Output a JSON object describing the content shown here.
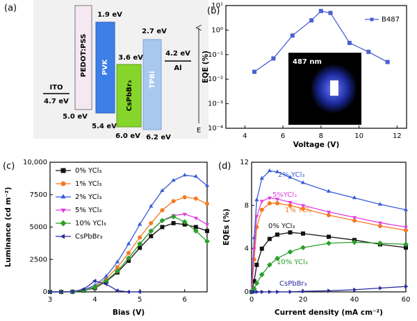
{
  "diagram": {
    "panel": "(a)",
    "axis_label": "E",
    "layers": [
      {
        "name": "ITO",
        "levels": [
          "4.7 eV"
        ]
      },
      {
        "name": "PEDOT:PSS",
        "levels": [
          "5.0 eV"
        ]
      },
      {
        "name": "PVK",
        "levels": [
          "1.9 eV",
          "5.4 eV"
        ]
      },
      {
        "name": "CsPbBr₃",
        "levels": [
          "3.6 eV",
          "6.0 eV"
        ]
      },
      {
        "name": "TPBi",
        "levels": [
          "2.7 eV",
          "6.2 eV"
        ]
      },
      {
        "name": "Al",
        "levels": [
          "4.2 eV"
        ]
      }
    ]
  },
  "chart_data": [
    {
      "type": "line",
      "panel": "(b)",
      "xlabel": "Voltage (V)",
      "ylabel": "EQE (%)",
      "inset_label": "487 nm",
      "log_y": true,
      "legend": "upper right",
      "xlim": [
        3,
        12.5
      ],
      "xticks": [
        4,
        6,
        8,
        10,
        12
      ],
      "ylim": [
        0.0001,
        10
      ],
      "yticks": [
        {
          "value": 0.0001,
          "label": "10⁻⁴"
        },
        {
          "value": 0.001,
          "label": "10⁻³"
        },
        {
          "value": 0.01,
          "label": "10⁻²"
        },
        {
          "value": 0.1,
          "label": "10⁻¹"
        },
        {
          "value": 1,
          "label": "10⁰"
        },
        {
          "value": 10,
          "label": "10¹"
        }
      ],
      "x": [
        4.5,
        5.5,
        6.5,
        7.5,
        8,
        8.5,
        9.5,
        10.5,
        11.5
      ],
      "series": [
        {
          "name": "B487",
          "color": "#4a5fd0",
          "marker": "square",
          "values": [
            0.02,
            0.07,
            0.6,
            2.5,
            6,
            5,
            0.3,
            0.13,
            0.05
          ]
        }
      ]
    },
    {
      "type": "line",
      "panel": "(c)",
      "xlabel": "Bias (V)",
      "ylabel": "Luminance (cd m⁻²)",
      "legend": "upper left",
      "xlim": [
        3,
        6.5
      ],
      "xticks": [
        3,
        4,
        5,
        6
      ],
      "ylim": [
        0,
        10000
      ],
      "yticks": [
        0,
        2500,
        5000,
        7500,
        {
          "value": 10000,
          "label": "10,000"
        }
      ],
      "x": [
        3,
        3.25,
        3.5,
        3.75,
        4,
        4.25,
        4.5,
        4.75,
        5,
        5.25,
        5.5,
        5.75,
        6,
        6.25,
        6.5
      ],
      "series": [
        {
          "name": "0% YCl₃",
          "color": "#111111",
          "marker": "square",
          "values": [
            0,
            0,
            10,
            100,
            300,
            800,
            1500,
            2400,
            3400,
            4300,
            5000,
            5300,
            5200,
            5000,
            4700
          ]
        },
        {
          "name": "1% YCl₃",
          "color": "#f47a20",
          "marker": "circle",
          "values": [
            0,
            0,
            10,
            120,
            400,
            1000,
            1900,
            3000,
            4200,
            5300,
            6300,
            7000,
            7300,
            7200,
            6800
          ]
        },
        {
          "name": "2% YCl₃",
          "color": "#3a5bd9",
          "marker": "triangle-up",
          "values": [
            0,
            0,
            20,
            150,
            500,
            1200,
            2300,
            3700,
            5200,
            6600,
            7800,
            8600,
            9000,
            8900,
            8200
          ]
        },
        {
          "name": "5% YCl₃",
          "color": "#e040e0",
          "marker": "triangle-down",
          "values": [
            0,
            0,
            10,
            100,
            350,
            850,
            1600,
            2600,
            3700,
            4700,
            5500,
            5900,
            6000,
            5700,
            5200
          ]
        },
        {
          "name": "10% YCl₃",
          "color": "#2aa02a",
          "marker": "diamond",
          "values": [
            0,
            0,
            10,
            100,
            350,
            850,
            1600,
            2600,
            3700,
            4700,
            5500,
            5800,
            5400,
            4700,
            3900
          ]
        },
        {
          "name": "CsPbBr₃",
          "color": "#2b2b9e",
          "marker": "triangle-left",
          "values": [
            0,
            0,
            20,
            200,
            850,
            600,
            100,
            0,
            0,
            null,
            null,
            null,
            null,
            null,
            null
          ]
        }
      ]
    },
    {
      "type": "line",
      "panel": "(d)",
      "xlabel": "Current density (mA cm⁻²)",
      "ylabel": "EQEs (%)",
      "legend": "on-curve",
      "xlim": [
        0,
        60
      ],
      "xticks": [
        0,
        20,
        40,
        60
      ],
      "ylim": [
        0,
        12
      ],
      "yticks": [
        0,
        4,
        8,
        12
      ],
      "x": [
        0,
        1,
        2,
        4,
        7,
        10,
        15,
        20,
        30,
        40,
        50,
        60
      ],
      "series": [
        {
          "name": "0% YCl₃",
          "color": "#111111",
          "marker": "square",
          "values": [
            0,
            1,
            2.5,
            4,
            4.9,
            5.3,
            5.5,
            5.4,
            5.1,
            4.8,
            4.4,
            4.1
          ]
        },
        {
          "name": "1% YCl₃",
          "color": "#f47a20",
          "marker": "circle",
          "values": [
            0,
            3,
            6,
            7.6,
            8.2,
            8.2,
            8.0,
            7.7,
            7.1,
            6.6,
            6.1,
            5.7
          ]
        },
        {
          "name": "2% YCl₃",
          "color": "#3a5bd9",
          "marker": "triangle-up",
          "values": [
            0,
            5,
            8.5,
            10.5,
            11.2,
            11.1,
            10.6,
            10.1,
            9.3,
            8.7,
            8.1,
            7.6
          ]
        },
        {
          "name": "5%YCl₃",
          "color": "#e040e0",
          "marker": "triangle-down",
          "values": [
            0,
            4,
            7,
            8.4,
            8.7,
            8.6,
            8.3,
            8.0,
            7.4,
            6.9,
            6.4,
            6.0
          ]
        },
        {
          "name": "10% YCl₃",
          "color": "#2aa02a",
          "marker": "diamond",
          "values": [
            0,
            0.3,
            0.8,
            1.6,
            2.5,
            3.1,
            3.7,
            4.1,
            4.5,
            4.6,
            4.5,
            4.4
          ]
        },
        {
          "name": "CsPbBr₃",
          "color": "#2b2b9e",
          "marker": "triangle-right",
          "values": [
            0,
            0,
            0,
            0,
            0,
            0,
            0,
            0.05,
            0.1,
            0.2,
            0.35,
            0.5
          ]
        }
      ]
    }
  ]
}
